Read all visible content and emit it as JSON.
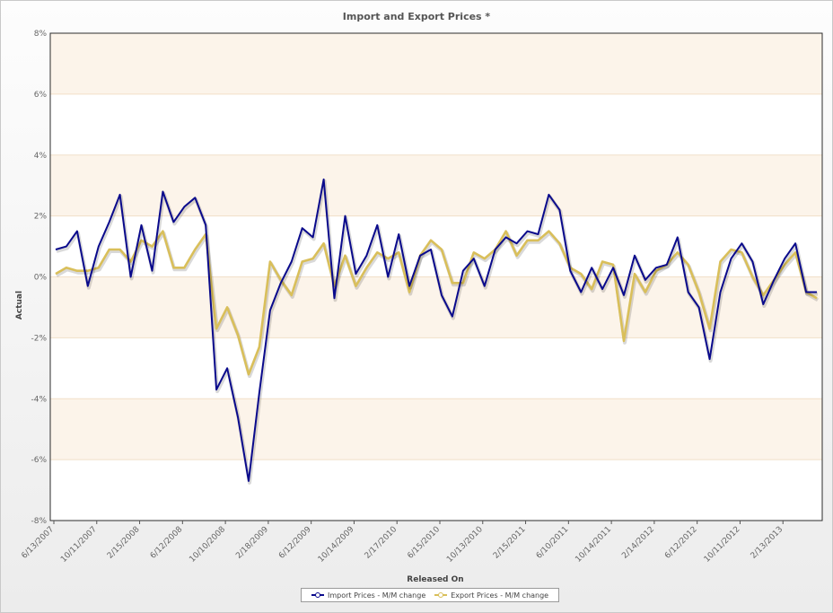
{
  "chart_data": {
    "type": "line",
    "title": "Import and Export Prices *",
    "xlabel": "Released On",
    "ylabel": "Actual",
    "ylim": [
      -8,
      8
    ],
    "y_ticks": [
      "-8%",
      "-6%",
      "-4%",
      "-2%",
      "0%",
      "2%",
      "4%",
      "6%",
      "8%"
    ],
    "y_tick_values": [
      -8,
      -6,
      -4,
      -2,
      0,
      2,
      4,
      6,
      8
    ],
    "x_tick_labels": [
      "6/13/2007",
      "10/11/2007",
      "2/15/2008",
      "6/12/2008",
      "10/10/2008",
      "2/18/2009",
      "6/12/2009",
      "10/14/2009",
      "2/17/2010",
      "6/15/2010",
      "10/13/2010",
      "2/15/2011",
      "6/10/2011",
      "10/14/2011",
      "2/14/2012",
      "6/12/2012",
      "10/11/2012",
      "2/13/2013"
    ],
    "x_tick_index": [
      0,
      4,
      8,
      12,
      16,
      20,
      24,
      28,
      32,
      36,
      40,
      44,
      48,
      52,
      56,
      60,
      64,
      68
    ],
    "x_count": 72,
    "grid": true,
    "legend_position": "bottom-center",
    "series": [
      {
        "name": "Import Prices - M/M change",
        "color": "#0a0a8c",
        "values": [
          0.9,
          1.0,
          1.5,
          -0.3,
          1.0,
          1.8,
          2.7,
          0.0,
          1.7,
          0.2,
          2.8,
          1.8,
          2.3,
          2.6,
          1.7,
          -3.7,
          -3.0,
          -4.6,
          -6.7,
          -3.8,
          -1.1,
          -0.2,
          0.5,
          1.6,
          1.3,
          3.2,
          -0.7,
          2.0,
          0.1,
          0.7,
          1.7,
          0.0,
          1.4,
          -0.3,
          0.7,
          0.9,
          -0.6,
          -1.3,
          0.2,
          0.6,
          -0.3,
          0.9,
          1.3,
          1.1,
          1.5,
          1.4,
          2.7,
          2.2,
          0.2,
          -0.5,
          0.3,
          -0.4,
          0.3,
          -0.6,
          0.7,
          -0.1,
          0.3,
          0.4,
          1.3,
          -0.5,
          -1.0,
          -2.7,
          -0.5,
          0.6,
          1.1,
          0.5,
          -0.9,
          -0.1,
          0.6,
          1.1,
          -0.5,
          -0.5
        ]
      },
      {
        "name": "Export Prices - M/M change",
        "color": "#d9bf5a",
        "values": [
          0.1,
          0.3,
          0.2,
          0.2,
          0.3,
          0.9,
          0.9,
          0.5,
          1.2,
          1.0,
          1.5,
          0.3,
          0.3,
          0.9,
          1.4,
          -1.7,
          -1.0,
          -1.9,
          -3.2,
          -2.3,
          0.5,
          -0.1,
          -0.6,
          0.5,
          0.6,
          1.1,
          -0.3,
          0.7,
          -0.3,
          0.3,
          0.8,
          0.6,
          0.8,
          -0.5,
          0.7,
          1.2,
          0.9,
          -0.2,
          -0.2,
          0.8,
          0.6,
          0.9,
          1.5,
          0.7,
          1.2,
          1.2,
          1.5,
          1.1,
          0.3,
          0.1,
          -0.4,
          0.5,
          0.4,
          -2.1,
          0.1,
          -0.5,
          0.2,
          0.4,
          0.8,
          0.4,
          -0.5,
          -1.7,
          0.5,
          0.9,
          0.8,
          0.0,
          -0.6,
          -0.1,
          0.4,
          0.8,
          -0.5,
          -0.7
        ]
      }
    ]
  }
}
